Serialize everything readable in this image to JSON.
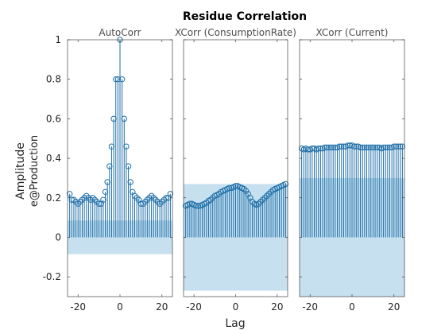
{
  "chart_data": {
    "type": "stem",
    "title": "Residue Correlation",
    "ylabel": "Amplitude",
    "ylabel_sub": "e@Production",
    "xlabel": "Lag",
    "ylim": [
      -0.3,
      1.0
    ],
    "yticks": [
      -0.2,
      0,
      0.2,
      0.4,
      0.6,
      0.8,
      1
    ],
    "ytick_labels": [
      "-0.2",
      "0",
      "0.2",
      "0.4",
      "0.6",
      "0.8",
      "1"
    ],
    "xlim": [
      -25,
      25
    ],
    "xticks": [
      -20,
      0,
      20
    ],
    "xtick_labels": [
      "-20",
      "0",
      "20"
    ],
    "colors": {
      "stem": "#1f6fa8",
      "band": "#c6e0ef",
      "axes_frame": "#262626",
      "title": "#000000"
    },
    "panels": [
      {
        "subtitle": "AutoCorr",
        "confidence_band": [
          -0.085,
          0.085
        ],
        "lags": [
          -24,
          -23,
          -22,
          -21,
          -20,
          -19,
          -18,
          -17,
          -16,
          -15,
          -14,
          -13,
          -12,
          -11,
          -10,
          -9,
          -8,
          -7,
          -6,
          -5,
          -4,
          -3,
          -2,
          -1,
          0,
          1,
          2,
          3,
          4,
          5,
          6,
          7,
          8,
          9,
          10,
          11,
          12,
          13,
          14,
          15,
          16,
          17,
          18,
          19,
          20,
          21,
          22,
          23,
          24
        ],
        "values": [
          0.22,
          0.19,
          0.19,
          0.18,
          0.17,
          0.18,
          0.19,
          0.2,
          0.21,
          0.2,
          0.19,
          0.2,
          0.19,
          0.18,
          0.17,
          0.17,
          0.19,
          0.23,
          0.28,
          0.36,
          0.46,
          0.6,
          0.8,
          0.8,
          1.0,
          0.8,
          0.6,
          0.46,
          0.36,
          0.28,
          0.23,
          0.21,
          0.2,
          0.19,
          0.17,
          0.17,
          0.18,
          0.19,
          0.2,
          0.21,
          0.2,
          0.19,
          0.18,
          0.17,
          0.18,
          0.19,
          0.2,
          0.2,
          0.22
        ]
      },
      {
        "subtitle": "XCorr (ConsumptionRate)",
        "confidence_band": [
          -0.27,
          0.27
        ],
        "lags": [
          -24,
          -23,
          -22,
          -21,
          -20,
          -19,
          -18,
          -17,
          -16,
          -15,
          -14,
          -13,
          -12,
          -11,
          -10,
          -9,
          -8,
          -7,
          -6,
          -5,
          -4,
          -3,
          -2,
          -1,
          0,
          1,
          2,
          3,
          4,
          5,
          6,
          7,
          8,
          9,
          10,
          11,
          12,
          13,
          14,
          15,
          16,
          17,
          18,
          19,
          20,
          21,
          22,
          23,
          24
        ],
        "values": [
          0.16,
          0.165,
          0.17,
          0.17,
          0.165,
          0.16,
          0.16,
          0.16,
          0.165,
          0.17,
          0.175,
          0.185,
          0.19,
          0.2,
          0.21,
          0.215,
          0.22,
          0.23,
          0.235,
          0.24,
          0.245,
          0.25,
          0.25,
          0.255,
          0.26,
          0.26,
          0.255,
          0.25,
          0.245,
          0.235,
          0.22,
          0.2,
          0.18,
          0.17,
          0.165,
          0.17,
          0.18,
          0.19,
          0.2,
          0.21,
          0.22,
          0.23,
          0.24,
          0.245,
          0.25,
          0.255,
          0.26,
          0.265,
          0.27
        ]
      },
      {
        "subtitle": "XCorr (Current)",
        "confidence_band": [
          -0.3,
          0.3
        ],
        "lags": [
          -24,
          -23,
          -22,
          -21,
          -20,
          -19,
          -18,
          -17,
          -16,
          -15,
          -14,
          -13,
          -12,
          -11,
          -10,
          -9,
          -8,
          -7,
          -6,
          -5,
          -4,
          -3,
          -2,
          -1,
          0,
          1,
          2,
          3,
          4,
          5,
          6,
          7,
          8,
          9,
          10,
          11,
          12,
          13,
          14,
          15,
          16,
          17,
          18,
          19,
          20,
          21,
          22,
          23,
          24
        ],
        "values": [
          0.45,
          0.445,
          0.45,
          0.445,
          0.445,
          0.45,
          0.45,
          0.445,
          0.45,
          0.45,
          0.45,
          0.455,
          0.455,
          0.455,
          0.455,
          0.455,
          0.455,
          0.455,
          0.46,
          0.46,
          0.46,
          0.46,
          0.465,
          0.465,
          0.465,
          0.46,
          0.46,
          0.46,
          0.455,
          0.455,
          0.455,
          0.455,
          0.455,
          0.455,
          0.455,
          0.455,
          0.455,
          0.455,
          0.45,
          0.455,
          0.455,
          0.455,
          0.455,
          0.455,
          0.46,
          0.46,
          0.46,
          0.46,
          0.46
        ]
      }
    ]
  }
}
